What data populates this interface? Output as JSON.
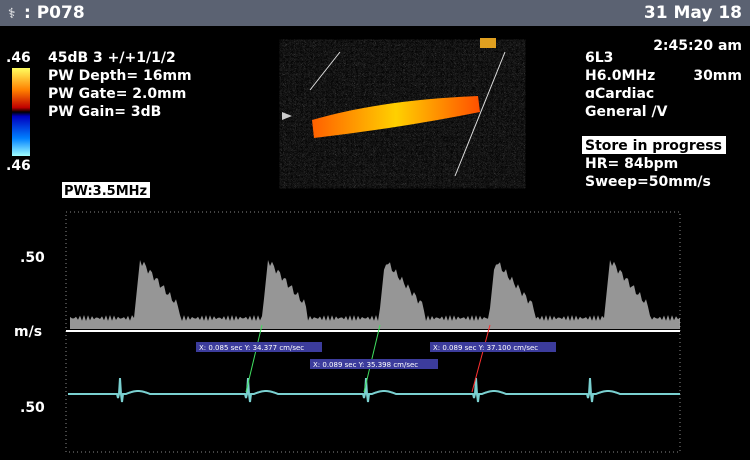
{
  "header": {
    "patient": ": P078",
    "date": "31 May 18"
  },
  "time": "2:45:20 am",
  "left_panel": {
    "scale_top": ".46",
    "line1": "45dB  3 +/+1/1/2",
    "depth": "PW Depth=  16mm",
    "gate": "PW Gate=  2.0mm",
    "gain": "PW Gain=    3dB",
    "scale_bottom": ".46"
  },
  "right_panel": {
    "probe": "6L3",
    "freq": "H6.0MHz",
    "depth": "30mm",
    "preset": "ɑCardiac",
    "mode": "General /V"
  },
  "status": {
    "store": "Store in progress",
    "hr": "HR=  84bpm",
    "sweep": "Sweep=50mm/s"
  },
  "pw_label": "PW:3.5MHz",
  "axis": {
    "top": ".50",
    "unit": "m/s",
    "bottom": ".50"
  },
  "measurements": [
    "X: 0.085 sec Y: 34.377 cm/sec",
    "X: 0.089 sec Y: 35.398 cm/sec",
    "X: 0.089 sec Y: 37.100 cm/sec"
  ]
}
